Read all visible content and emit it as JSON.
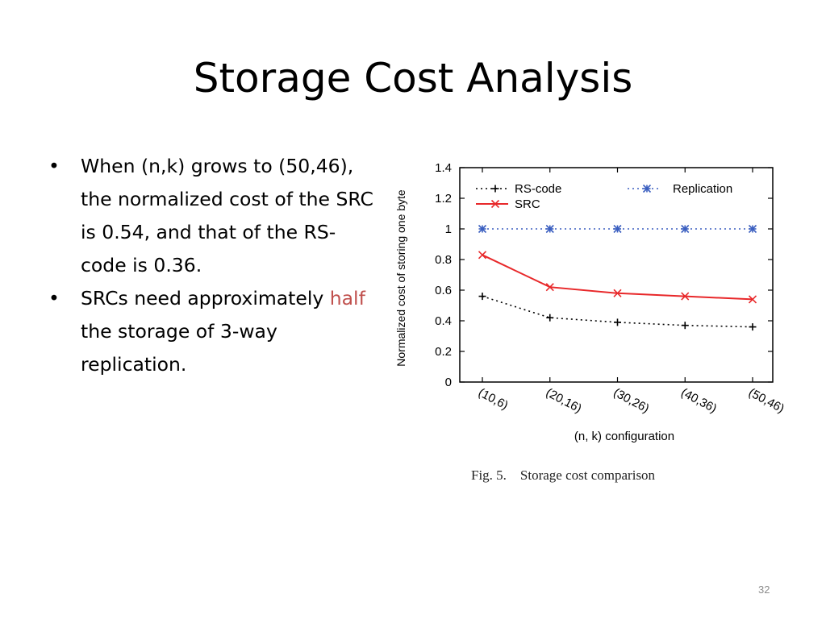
{
  "slide": {
    "title": "Storage Cost Analysis",
    "bullets": [
      {
        "marker": "•",
        "parts": [
          {
            "text": "When (n,k) grows to (50,46), the normalized cost of the SRC is 0.54, and that of the RS-code is 0.36.",
            "highlight": false
          }
        ]
      },
      {
        "marker": "•",
        "parts": [
          {
            "text": "SRCs need approximately ",
            "highlight": false
          },
          {
            "text": "half",
            "highlight": true
          },
          {
            "text": " the storage of 3-way replication.",
            "highlight": false
          }
        ]
      }
    ],
    "highlight_color": "#c0504d",
    "page_number": "32"
  },
  "chart_data": {
    "type": "line",
    "categories": [
      "(10,6)",
      "(20,16)",
      "(30,26)",
      "(40,36)",
      "(50,46)"
    ],
    "xlabel": "(n, k) configuration",
    "ylabel": "Normalized cost of storing one byte",
    "ylim": [
      0,
      1.4
    ],
    "yticks": [
      "0",
      "0.2",
      "0.4",
      "0.6",
      "0.8",
      "1",
      "1.2",
      "1.4"
    ],
    "grid": false,
    "legend_position": "top",
    "caption": "Fig. 5.    Storage cost comparison",
    "series": [
      {
        "name": "RS-code",
        "values": [
          0.56,
          0.42,
          0.39,
          0.37,
          0.36
        ],
        "color": "#000000",
        "line": "dotted",
        "marker": "plus"
      },
      {
        "name": "Replication",
        "values": [
          1.0,
          1.0,
          1.0,
          1.0,
          1.0
        ],
        "color": "#3b5fc0",
        "line": "dotted",
        "marker": "star"
      },
      {
        "name": "SRC",
        "values": [
          0.83,
          0.62,
          0.58,
          0.56,
          0.54
        ],
        "color": "#e8282a",
        "line": "solid",
        "marker": "cross"
      }
    ]
  }
}
